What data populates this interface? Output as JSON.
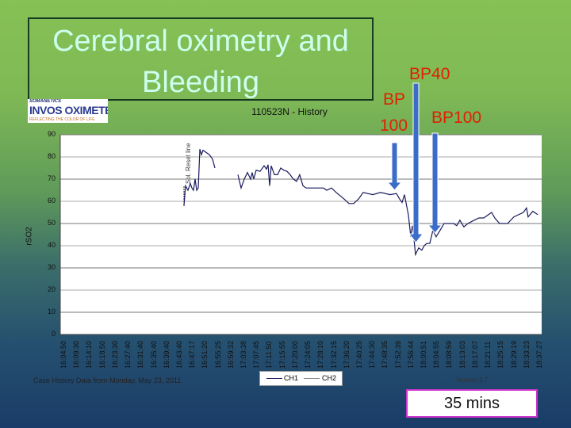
{
  "slide": {
    "title": "Cerebral oximetry and Bleeding",
    "logo": {
      "brand": "SOMANETICS",
      "name": "INVOS OXIMETER",
      "sub": "CEREBRAL/SOMATIC",
      "tagline": "REFLECTING THE COLOR OF LIFE"
    },
    "annotations": {
      "bp40": "BP40",
      "bp100_left_line1": "BP",
      "bp100_left_line2": "100",
      "bp100_right": "BP100"
    },
    "duration_box": "35 mins",
    "arrow_color": "#3a6cc8",
    "annotation_color": "#dd2200"
  },
  "chart_data": {
    "type": "line",
    "title": "110523N - History",
    "ylabel": "rSO2",
    "ylim": [
      0,
      90
    ],
    "yticks": [
      "0",
      "10",
      "20",
      "30",
      "40",
      "50",
      "60",
      "70",
      "80",
      "90"
    ],
    "grid": true,
    "xlabels": [
      "16:04:50",
      "16:09:30",
      "16:14:10",
      "16:18:50",
      "16:23:30",
      "16:27:40",
      "16:31:40",
      "16:35:40",
      "16:39:40",
      "16:43:40",
      "16:47:17",
      "16:51:20",
      "16:55:25",
      "16:59:32",
      "17:03:38",
      "17:07:45",
      "17:11:50",
      "17:15:55",
      "17:20:00",
      "17:24:05",
      "17:28:10",
      "17:32:15",
      "17:36:20",
      "17:40:25",
      "17:44:30",
      "17:48:35",
      "17:52:39",
      "17:56:44",
      "18:00:51",
      "18:04:55",
      "18:08:59",
      "18:13:03",
      "18:17:07",
      "18:21:11",
      "18:25:15",
      "18:29:19",
      "18:33:23",
      "18:37:27"
    ],
    "marker_text": "Sol. Reset line",
    "legend": [
      "CH1",
      "CH2"
    ],
    "legend_placement": "bottom",
    "footer": "Case History Data from Monday, May 23, 2011",
    "version": "Version 3.7",
    "series": [
      {
        "name": "CH1",
        "color": "#1a1a5e",
        "segments": [
          [
            [
              "16:43:30",
              58
            ],
            [
              "16:44:00",
              67
            ],
            [
              "16:44:46",
              65
            ],
            [
              "16:45:32",
              68
            ],
            [
              "16:46:02",
              66
            ],
            [
              "16:46:33",
              65
            ],
            [
              "16:47:03",
              70
            ],
            [
              "16:47:34",
              65
            ],
            [
              "16:48:04",
              66
            ],
            [
              "16:48:35",
              83.5
            ],
            [
              "16:49:05",
              81
            ],
            [
              "16:49:36",
              83
            ],
            [
              "16:50:37",
              82
            ],
            [
              "16:51:38",
              81
            ],
            [
              "16:52:39",
              79
            ],
            [
              "16:53:25",
              75
            ]
          ],
          [
            [
              "17:00:47",
              72
            ],
            [
              "17:01:48",
              66
            ],
            [
              "17:02:49",
              70
            ],
            [
              "17:03:50",
              73
            ],
            [
              "17:04:51",
              70
            ],
            [
              "17:05:22",
              73
            ],
            [
              "17:05:52",
              70
            ],
            [
              "17:06:38",
              74
            ],
            [
              "17:07:54",
              73.5
            ],
            [
              "17:09:11",
              76
            ],
            [
              "17:09:57",
              74.5
            ],
            [
              "17:10:27",
              76.5
            ],
            [
              "17:10:58",
              67
            ],
            [
              "17:11:28",
              76
            ],
            [
              "17:12:29",
              72
            ],
            [
              "17:13:30",
              72
            ],
            [
              "17:14:31",
              75
            ],
            [
              "17:15:32",
              74
            ],
            [
              "17:16:33",
              73.5
            ],
            [
              "17:17:34",
              72
            ],
            [
              "17:18:35",
              70
            ],
            [
              "17:19:36",
              69
            ],
            [
              "17:20:37",
              72
            ],
            [
              "17:21:39",
              67
            ],
            [
              "17:22:40",
              66
            ],
            [
              "17:23:41",
              66
            ],
            [
              "17:26:13",
              66
            ],
            [
              "17:27:14",
              66
            ],
            [
              "17:28:15",
              66
            ],
            [
              "17:29:16",
              65
            ],
            [
              "17:30:48",
              66
            ],
            [
              "17:32:19",
              64
            ],
            [
              "17:34:52",
              61
            ],
            [
              "17:36:24",
              59
            ],
            [
              "17:37:55",
              59
            ],
            [
              "17:39:27",
              61
            ],
            [
              "17:40:58",
              64
            ],
            [
              "17:44:01",
              63
            ],
            [
              "17:46:34",
              64
            ],
            [
              "17:49:37",
              63
            ],
            [
              "17:51:39",
              63.5
            ],
            [
              "17:52:40",
              61
            ],
            [
              "17:53:26",
              59.5
            ],
            [
              "17:54:12",
              63
            ],
            [
              "17:55:28",
              54
            ],
            [
              "17:56:14",
              44
            ],
            [
              "17:56:44",
              49
            ],
            [
              "17:57:15",
              43
            ],
            [
              "17:57:45",
              36
            ],
            [
              "17:58:46",
              39
            ],
            [
              "17:59:47",
              38
            ],
            [
              "18:00:33",
              40
            ],
            [
              "18:01:19",
              41
            ],
            [
              "18:02:20",
              41
            ],
            [
              "18:03:21",
              47
            ],
            [
              "18:04:22",
              44
            ],
            [
              "18:05:39",
              47
            ],
            [
              "18:06:55",
              50
            ],
            [
              "18:08:26",
              50
            ],
            [
              "18:09:58",
              50
            ],
            [
              "18:10:59",
              49
            ],
            [
              "18:12:00",
              51.5
            ],
            [
              "18:13:16",
              48.5
            ],
            [
              "18:14:33",
              50
            ],
            [
              "18:16:35",
              51.5
            ],
            [
              "18:18:06",
              52.5
            ],
            [
              "18:19:38",
              52.5
            ],
            [
              "18:22:10",
              55
            ],
            [
              "18:23:11",
              52.5
            ],
            [
              "18:24:43",
              50
            ],
            [
              "18:27:16",
              50
            ],
            [
              "18:29:18",
              53
            ],
            [
              "18:32:21",
              55
            ],
            [
              "18:33:22",
              57
            ],
            [
              "18:33:52",
              53
            ],
            [
              "18:35:24",
              55.5
            ],
            [
              "18:36:56",
              54
            ]
          ]
        ]
      }
    ]
  }
}
